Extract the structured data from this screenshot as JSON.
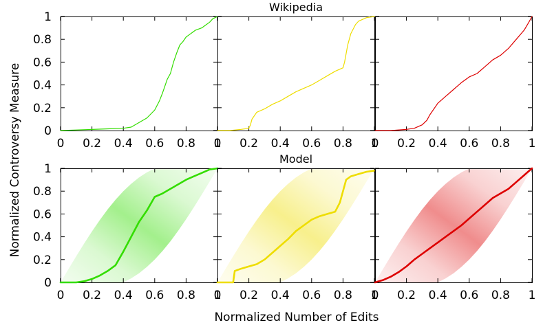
{
  "chart_data": {
    "type": "line",
    "ylabel": "Normalized Controversy Measure",
    "xlabel": "Normalized Number of Edits",
    "xlim": [
      0,
      1
    ],
    "ylim": [
      0,
      1
    ],
    "x_ticks": [
      "0",
      "0.2",
      "0.4",
      "0.6",
      "0.8",
      "1"
    ],
    "y_ticks": [
      "0",
      "0.2",
      "0.4",
      "0.6",
      "0.8",
      "1"
    ],
    "rows": [
      {
        "title": "Wikipedia",
        "panels": [
          {
            "color": "#33dd00",
            "line_width": 1.2,
            "band": false,
            "series": {
              "x": [
                0.0,
                0.1,
                0.2,
                0.3,
                0.4,
                0.45,
                0.5,
                0.55,
                0.6,
                0.63,
                0.65,
                0.68,
                0.7,
                0.72,
                0.74,
                0.76,
                0.78,
                0.8,
                0.82,
                0.84,
                0.86,
                0.9,
                0.92,
                0.95,
                0.97,
                1.0
              ],
              "y": [
                0.0,
                0.005,
                0.01,
                0.015,
                0.02,
                0.03,
                0.07,
                0.11,
                0.18,
                0.26,
                0.33,
                0.45,
                0.5,
                0.6,
                0.68,
                0.75,
                0.78,
                0.82,
                0.84,
                0.86,
                0.88,
                0.9,
                0.92,
                0.95,
                0.98,
                1.0
              ]
            }
          },
          {
            "color": "#eedd00",
            "line_width": 1.2,
            "band": false,
            "series": {
              "x": [
                0.0,
                0.08,
                0.15,
                0.2,
                0.21,
                0.22,
                0.25,
                0.3,
                0.35,
                0.4,
                0.45,
                0.5,
                0.55,
                0.6,
                0.65,
                0.7,
                0.75,
                0.8,
                0.81,
                0.83,
                0.85,
                0.88,
                0.9,
                0.95,
                1.0
              ],
              "y": [
                0.0,
                0.0,
                0.01,
                0.02,
                0.05,
                0.1,
                0.16,
                0.19,
                0.23,
                0.26,
                0.3,
                0.34,
                0.37,
                0.4,
                0.44,
                0.48,
                0.52,
                0.55,
                0.6,
                0.75,
                0.85,
                0.93,
                0.96,
                0.99,
                1.0
              ]
            }
          },
          {
            "color": "#dd0000",
            "line_width": 1.2,
            "band": false,
            "series": {
              "x": [
                0.0,
                0.1,
                0.2,
                0.25,
                0.3,
                0.33,
                0.35,
                0.38,
                0.4,
                0.45,
                0.5,
                0.55,
                0.6,
                0.65,
                0.7,
                0.75,
                0.8,
                0.85,
                0.9,
                0.95,
                0.98,
                1.0
              ],
              "y": [
                0.0,
                0.0,
                0.01,
                0.02,
                0.05,
                0.09,
                0.14,
                0.2,
                0.24,
                0.3,
                0.36,
                0.42,
                0.47,
                0.5,
                0.56,
                0.62,
                0.66,
                0.72,
                0.8,
                0.88,
                0.95,
                1.0
              ]
            }
          }
        ]
      },
      {
        "title": "Model",
        "panels": [
          {
            "color": "#33dd00",
            "line_width": 2.6,
            "band": true,
            "series": {
              "x": [
                0.0,
                0.05,
                0.1,
                0.15,
                0.2,
                0.25,
                0.3,
                0.35,
                0.4,
                0.45,
                0.5,
                0.55,
                0.6,
                0.65,
                0.7,
                0.75,
                0.8,
                0.85,
                0.9,
                0.95,
                1.0
              ],
              "y": [
                0.0,
                0.0,
                0.0,
                0.01,
                0.03,
                0.06,
                0.1,
                0.15,
                0.27,
                0.4,
                0.53,
                0.63,
                0.75,
                0.78,
                0.82,
                0.86,
                0.9,
                0.93,
                0.96,
                0.99,
                1.0
              ]
            }
          },
          {
            "color": "#eedd00",
            "line_width": 2.6,
            "band": true,
            "series": {
              "x": [
                0.0,
                0.1,
                0.11,
                0.15,
                0.2,
                0.25,
                0.3,
                0.35,
                0.4,
                0.45,
                0.5,
                0.55,
                0.6,
                0.65,
                0.7,
                0.75,
                0.78,
                0.8,
                0.82,
                0.85,
                0.9,
                0.95,
                1.0
              ],
              "y": [
                0.0,
                0.0,
                0.1,
                0.12,
                0.14,
                0.16,
                0.2,
                0.26,
                0.32,
                0.38,
                0.45,
                0.5,
                0.55,
                0.58,
                0.6,
                0.62,
                0.7,
                0.8,
                0.9,
                0.93,
                0.95,
                0.97,
                0.98
              ]
            }
          },
          {
            "color": "#dd0000",
            "line_width": 2.6,
            "band": true,
            "series": {
              "x": [
                0.0,
                0.05,
                0.1,
                0.15,
                0.2,
                0.25,
                0.3,
                0.35,
                0.4,
                0.45,
                0.5,
                0.55,
                0.6,
                0.65,
                0.7,
                0.75,
                0.8,
                0.85,
                0.9,
                0.95,
                1.0
              ],
              "y": [
                0.0,
                0.02,
                0.05,
                0.09,
                0.14,
                0.2,
                0.25,
                0.3,
                0.35,
                0.4,
                0.45,
                0.5,
                0.56,
                0.62,
                0.68,
                0.74,
                0.78,
                0.82,
                0.88,
                0.94,
                1.0
              ]
            }
          }
        ]
      }
    ]
  }
}
